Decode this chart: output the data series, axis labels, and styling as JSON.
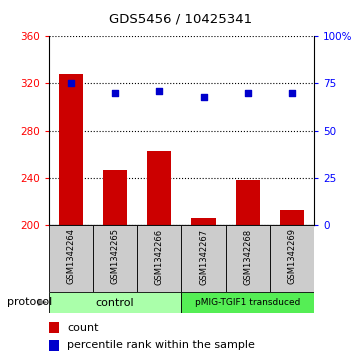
{
  "title": "GDS5456 / 10425341",
  "samples": [
    "GSM1342264",
    "GSM1342265",
    "GSM1342266",
    "GSM1342267",
    "GSM1342268",
    "GSM1342269"
  ],
  "counts": [
    328,
    247,
    263,
    206,
    238,
    213
  ],
  "percentiles": [
    75,
    70,
    71,
    68,
    70,
    70
  ],
  "ylim_left": [
    200,
    360
  ],
  "ylim_right": [
    0,
    100
  ],
  "yticks_left": [
    200,
    240,
    280,
    320,
    360
  ],
  "yticks_right": [
    0,
    25,
    50,
    75,
    100
  ],
  "bar_color": "#cc0000",
  "dot_color": "#0000cc",
  "bar_width": 0.55,
  "ctrl_color": "#aaffaa",
  "pmig_color": "#55ee55",
  "protocol_label": "protocol",
  "legend_count_label": "count",
  "legend_pct_label": "percentile rank within the sample",
  "sample_box_color": "#cccccc",
  "ctrl_label": "control",
  "pmig_label": "pMIG-TGIF1 transduced"
}
